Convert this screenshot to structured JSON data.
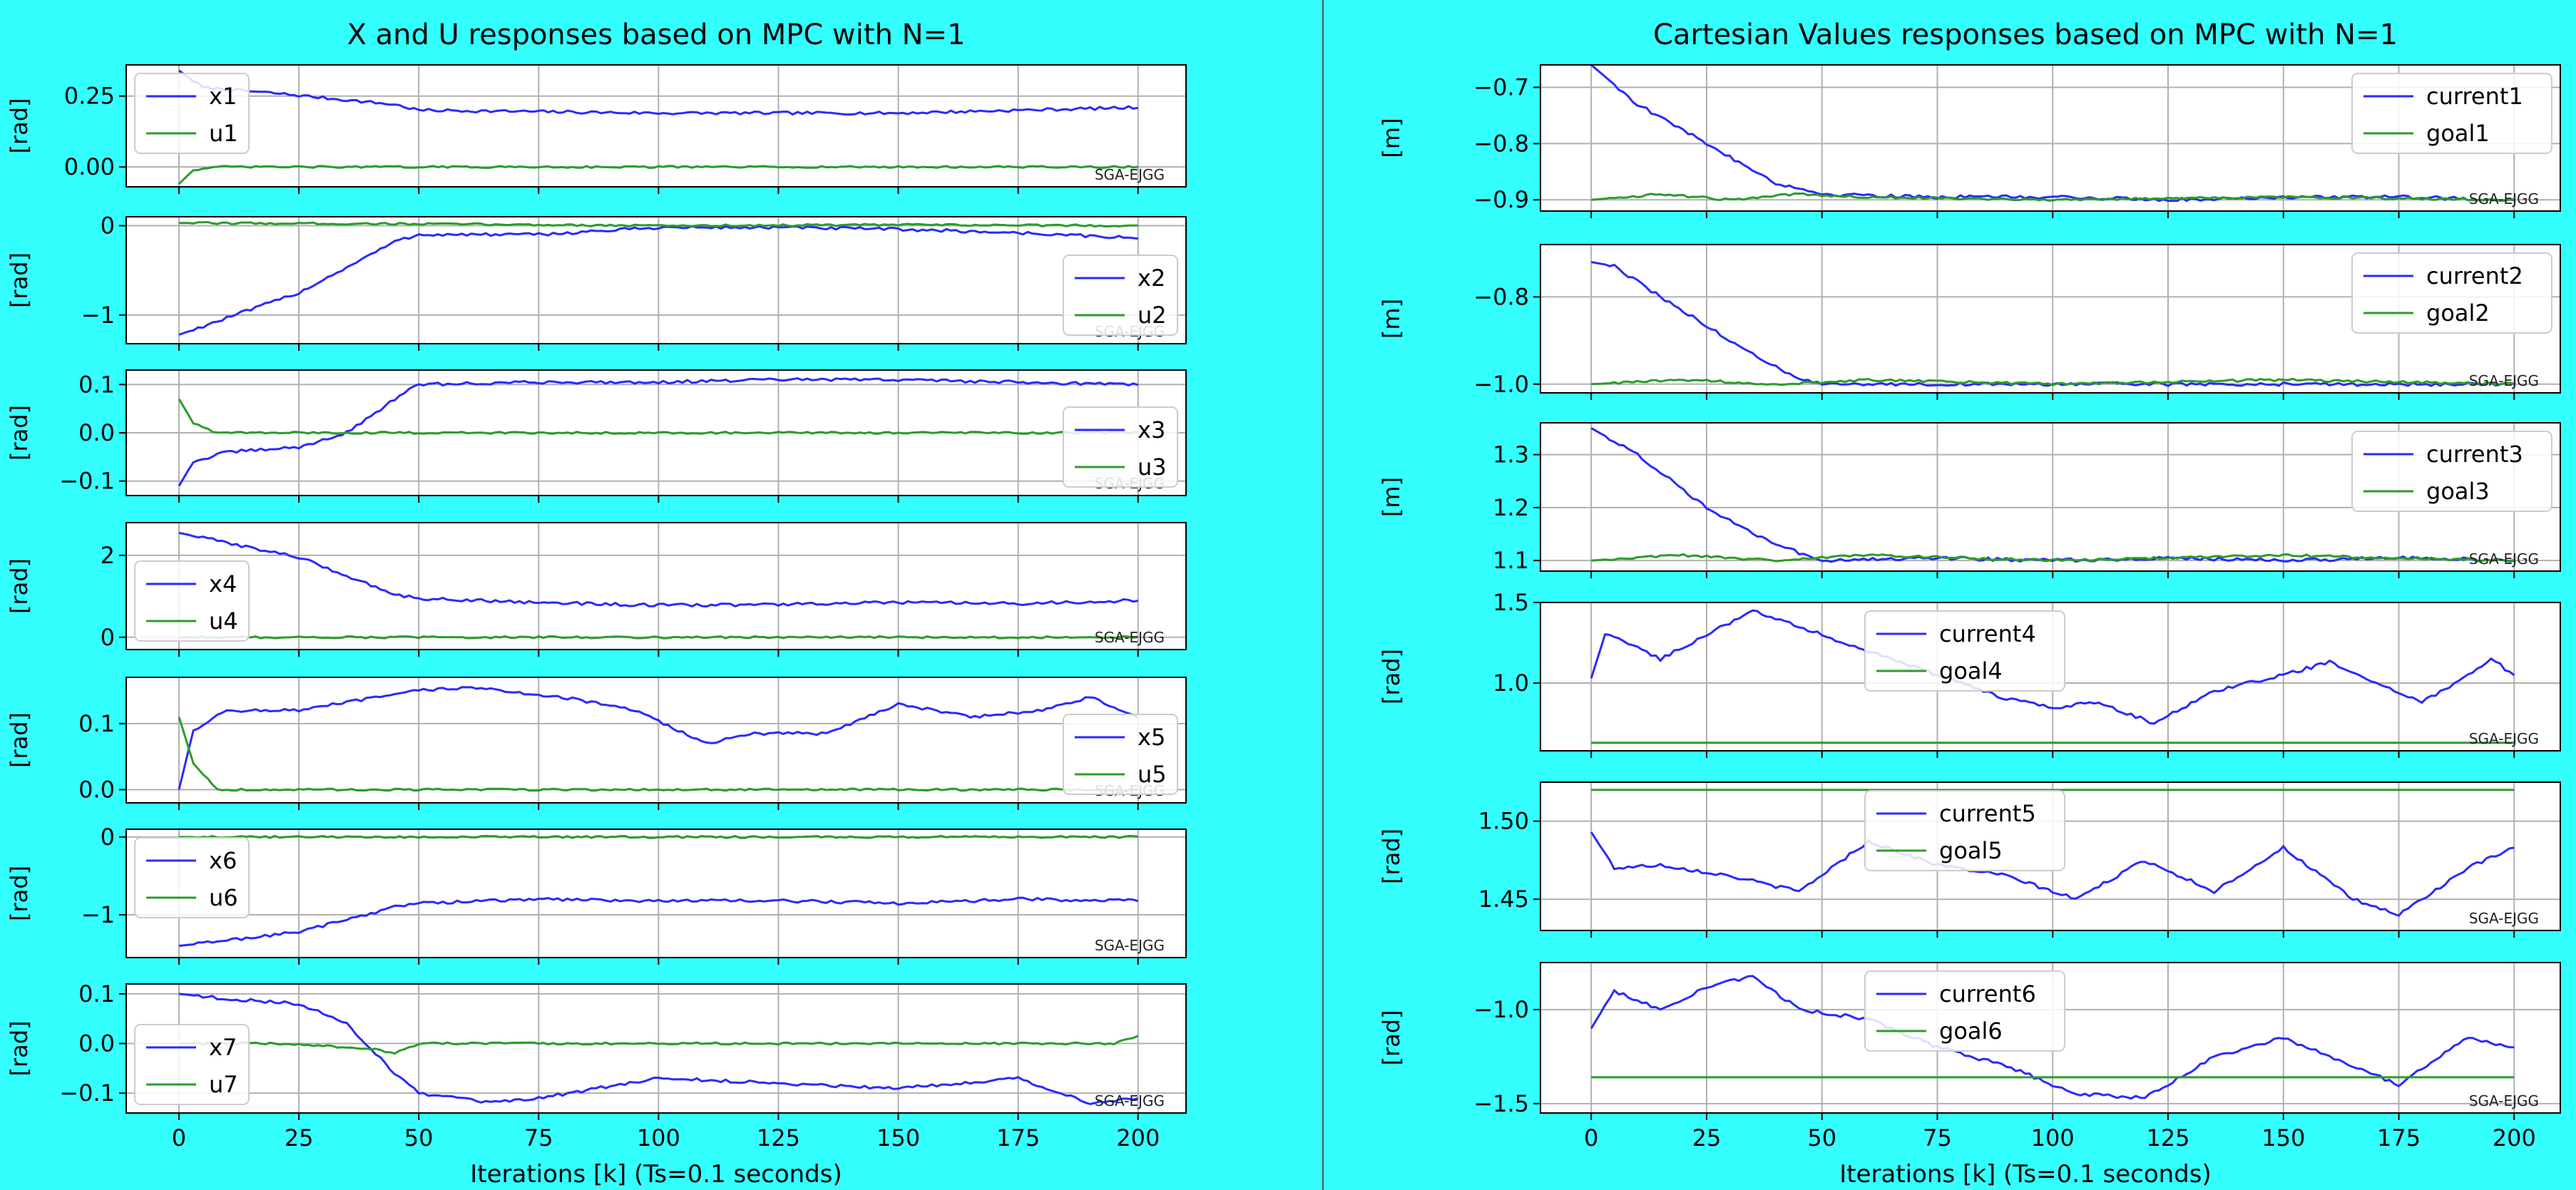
{
  "figure": {
    "background": "#33ffff",
    "panel_background": "#ffffff",
    "grid_color": "#b0b0b0",
    "series_colors": {
      "state": "#2a2aff",
      "input": "#2a9d2a"
    },
    "watermark": "SGA-EJGG",
    "left_title": "X and U responses based on MPC with N=1",
    "right_title": "Cartesian Values responses based on MPC with N=1",
    "left_xlabel": "Iterations [k] (Ts=0.1 seconds)",
    "right_xlabel": "Iterations [k] (Ts=0.1 seconds)",
    "x_ticks": [
      "0",
      "25",
      "50",
      "75",
      "100",
      "125",
      "150",
      "175",
      "200"
    ]
  },
  "chart_data": [
    {
      "type": "line",
      "panel": "left-1",
      "ylabel": "[rad]",
      "xlim": [
        -11,
        210
      ],
      "ylim": [
        -0.07,
        0.36
      ],
      "yticks": [
        0.0,
        0.25
      ],
      "ytick_labels": [
        "0.00",
        "0.25"
      ],
      "legend": "top-left",
      "series": [
        {
          "name": "x1",
          "x": [
            0,
            5,
            20,
            45,
            50,
            100,
            150,
            200
          ],
          "values": [
            0.34,
            0.28,
            0.26,
            0.22,
            0.2,
            0.19,
            0.19,
            0.21
          ]
        },
        {
          "name": "u1",
          "x": [
            0,
            3,
            8,
            20,
            50,
            100,
            150,
            200
          ],
          "values": [
            -0.06,
            -0.01,
            0.0,
            0.0,
            0.0,
            0.0,
            0.0,
            0.0
          ]
        }
      ]
    },
    {
      "type": "line",
      "panel": "left-2",
      "ylabel": "[rad]",
      "xlim": [
        -11,
        210
      ],
      "ylim": [
        -1.32,
        0.1
      ],
      "yticks": [
        -1,
        0
      ],
      "ytick_labels": [
        "−1",
        "0"
      ],
      "legend": "bottom-right",
      "series": [
        {
          "name": "x2",
          "x": [
            0,
            25,
            45,
            50,
            75,
            100,
            125,
            150,
            175,
            200
          ],
          "values": [
            -1.22,
            -0.75,
            -0.18,
            -0.1,
            -0.1,
            -0.02,
            -0.02,
            -0.04,
            -0.08,
            -0.14
          ]
        },
        {
          "name": "u2",
          "x": [
            0,
            50,
            100,
            150,
            200
          ],
          "values": [
            0.03,
            0.02,
            0.0,
            0.01,
            0.0
          ]
        }
      ]
    },
    {
      "type": "line",
      "panel": "left-3",
      "ylabel": "[rad]",
      "xlim": [
        -11,
        210
      ],
      "ylim": [
        -0.13,
        0.13
      ],
      "yticks": [
        -0.1,
        0.0,
        0.1
      ],
      "ytick_labels": [
        "−0.1",
        "0.0",
        "0.1"
      ],
      "legend": "bottom-right",
      "series": [
        {
          "name": "x3",
          "x": [
            0,
            3,
            10,
            25,
            35,
            45,
            50,
            75,
            100,
            125,
            150,
            175,
            200
          ],
          "values": [
            -0.11,
            -0.06,
            -0.04,
            -0.03,
            0.0,
            0.07,
            0.1,
            0.105,
            0.105,
            0.11,
            0.11,
            0.105,
            0.1
          ]
        },
        {
          "name": "u3",
          "x": [
            0,
            3,
            8,
            25,
            50,
            100,
            150,
            200
          ],
          "values": [
            0.07,
            0.02,
            0.0,
            0.0,
            0.0,
            0.0,
            0.0,
            0.0
          ]
        }
      ]
    },
    {
      "type": "line",
      "panel": "left-4",
      "ylabel": "[rad]",
      "xlim": [
        -11,
        210
      ],
      "ylim": [
        -0.3,
        2.8
      ],
      "yticks": [
        0,
        2
      ],
      "ytick_labels": [
        "0",
        "2"
      ],
      "legend": "bottom-left",
      "series": [
        {
          "name": "x4",
          "x": [
            0,
            25,
            45,
            50,
            75,
            100,
            125,
            150,
            175,
            200
          ],
          "values": [
            2.55,
            1.95,
            1.05,
            0.95,
            0.85,
            0.78,
            0.8,
            0.85,
            0.82,
            0.9
          ]
        },
        {
          "name": "u4",
          "x": [
            0,
            50,
            100,
            150,
            200
          ],
          "values": [
            0.0,
            0.0,
            0.0,
            0.0,
            0.0
          ]
        }
      ]
    },
    {
      "type": "line",
      "panel": "left-5",
      "ylabel": "[rad]",
      "xlim": [
        -11,
        210
      ],
      "ylim": [
        -0.02,
        0.17
      ],
      "yticks": [
        0.0,
        0.1
      ],
      "ytick_labels": [
        "0.0",
        "0.1"
      ],
      "legend": "bottom-right",
      "series": [
        {
          "name": "x5",
          "x": [
            0,
            3,
            10,
            25,
            50,
            60,
            80,
            95,
            110,
            120,
            135,
            150,
            165,
            180,
            190,
            200
          ],
          "values": [
            0.0,
            0.09,
            0.12,
            0.12,
            0.15,
            0.155,
            0.14,
            0.12,
            0.07,
            0.085,
            0.085,
            0.13,
            0.11,
            0.12,
            0.14,
            0.11
          ]
        },
        {
          "name": "u5",
          "x": [
            0,
            3,
            8,
            20,
            50,
            100,
            150,
            200
          ],
          "values": [
            0.11,
            0.04,
            0.0,
            0.0,
            0.0,
            0.0,
            0.0,
            0.0
          ]
        }
      ]
    },
    {
      "type": "line",
      "panel": "left-6",
      "ylabel": "[rad]",
      "xlim": [
        -11,
        210
      ],
      "ylim": [
        -1.55,
        0.1
      ],
      "yticks": [
        -1,
        0
      ],
      "ytick_labels": [
        "−1",
        "0"
      ],
      "legend": "top-left",
      "series": [
        {
          "name": "x6",
          "x": [
            0,
            25,
            45,
            50,
            75,
            100,
            125,
            150,
            175,
            200
          ],
          "values": [
            -1.4,
            -1.22,
            -0.9,
            -0.85,
            -0.8,
            -0.82,
            -0.82,
            -0.85,
            -0.8,
            -0.82
          ]
        },
        {
          "name": "u6",
          "x": [
            0,
            50,
            100,
            150,
            200
          ],
          "values": [
            0.0,
            0.0,
            0.0,
            0.0,
            0.0
          ]
        }
      ]
    },
    {
      "type": "line",
      "panel": "left-7",
      "ylabel": "[rad]",
      "xlim": [
        -11,
        210
      ],
      "ylim": [
        -0.14,
        0.12
      ],
      "yticks": [
        -0.1,
        0.0,
        0.1
      ],
      "ytick_labels": [
        "−0.1",
        "0.0",
        "0.1"
      ],
      "legend": "bottom-left",
      "series": [
        {
          "name": "x7",
          "x": [
            0,
            10,
            25,
            35,
            45,
            50,
            65,
            75,
            100,
            125,
            150,
            175,
            190,
            200
          ],
          "values": [
            0.1,
            0.09,
            0.08,
            0.04,
            -0.06,
            -0.1,
            -0.12,
            -0.11,
            -0.07,
            -0.08,
            -0.09,
            -0.07,
            -0.12,
            -0.11
          ]
        },
        {
          "name": "u7",
          "x": [
            0,
            20,
            40,
            45,
            50,
            100,
            150,
            195,
            200
          ],
          "values": [
            0.0,
            0.0,
            -0.01,
            -0.02,
            0.0,
            0.0,
            0.0,
            0.0,
            0.015
          ]
        }
      ]
    },
    {
      "type": "line",
      "panel": "right-1",
      "ylabel": "[m]",
      "xlim": [
        -11,
        210
      ],
      "ylim": [
        -0.92,
        -0.66
      ],
      "yticks": [
        -0.9,
        -0.8,
        -0.7
      ],
      "ytick_labels": [
        "−0.9",
        "−0.8",
        "−0.7"
      ],
      "legend": "top-right",
      "series": [
        {
          "name": "current1",
          "x": [
            0,
            10,
            25,
            40,
            50,
            75,
            100,
            125,
            150,
            175,
            200
          ],
          "values": [
            -0.66,
            -0.73,
            -0.8,
            -0.87,
            -0.89,
            -0.895,
            -0.895,
            -0.9,
            -0.895,
            -0.895,
            -0.9
          ]
        },
        {
          "name": "goal1",
          "x": [
            0,
            15,
            30,
            45,
            60,
            100,
            150,
            200
          ],
          "values": [
            -0.9,
            -0.89,
            -0.9,
            -0.89,
            -0.895,
            -0.9,
            -0.895,
            -0.9
          ]
        }
      ]
    },
    {
      "type": "line",
      "panel": "right-2",
      "ylabel": "[m]",
      "xlim": [
        -11,
        210
      ],
      "ylim": [
        -1.02,
        -0.68
      ],
      "yticks": [
        -1.0,
        -0.8
      ],
      "ytick_labels": [
        "−1.0",
        "−0.8"
      ],
      "legend": "top-right",
      "series": [
        {
          "name": "current2",
          "x": [
            0,
            5,
            15,
            30,
            45,
            50,
            75,
            100,
            125,
            150,
            175,
            200
          ],
          "values": [
            -0.72,
            -0.73,
            -0.8,
            -0.9,
            -0.99,
            -1.0,
            -1.0,
            -1.0,
            -1.0,
            -1.0,
            -1.0,
            -1.0
          ]
        },
        {
          "name": "goal2",
          "x": [
            0,
            20,
            40,
            60,
            100,
            150,
            200
          ],
          "values": [
            -1.0,
            -0.99,
            -1.0,
            -0.99,
            -1.0,
            -0.99,
            -1.0
          ]
        }
      ]
    },
    {
      "type": "line",
      "panel": "right-3",
      "ylabel": "[m]",
      "xlim": [
        -11,
        210
      ],
      "ylim": [
        1.08,
        1.36
      ],
      "yticks": [
        1.1,
        1.2,
        1.3
      ],
      "ytick_labels": [
        "1.1",
        "1.2",
        "1.3"
      ],
      "legend": "top-right",
      "series": [
        {
          "name": "current3",
          "x": [
            0,
            10,
            25,
            40,
            50,
            75,
            100,
            125,
            150,
            175,
            200
          ],
          "values": [
            1.35,
            1.3,
            1.2,
            1.13,
            1.1,
            1.105,
            1.1,
            1.105,
            1.1,
            1.105,
            1.1
          ]
        },
        {
          "name": "goal3",
          "x": [
            0,
            20,
            40,
            60,
            100,
            150,
            200
          ],
          "values": [
            1.1,
            1.11,
            1.1,
            1.11,
            1.1,
            1.11,
            1.1
          ]
        }
      ]
    },
    {
      "type": "line",
      "panel": "right-4",
      "ylabel": "[rad]",
      "xlim": [
        -11,
        210
      ],
      "ylim": [
        0.58,
        1.5
      ],
      "yticks": [
        1.0,
        1.5
      ],
      "ytick_labels": [
        "1.0",
        "1.5"
      ],
      "legend": "top-center",
      "series": [
        {
          "name": "current4",
          "x": [
            0,
            3,
            8,
            15,
            25,
            35,
            45,
            60,
            75,
            90,
            100,
            110,
            122,
            135,
            150,
            160,
            170,
            180,
            190,
            195,
            200
          ],
          "values": [
            1.03,
            1.3,
            1.25,
            1.15,
            1.3,
            1.45,
            1.35,
            1.2,
            1.05,
            0.9,
            0.85,
            0.88,
            0.75,
            0.95,
            1.05,
            1.13,
            1.0,
            0.88,
            1.05,
            1.15,
            1.05
          ]
        },
        {
          "name": "goal4",
          "x": [
            0,
            200
          ],
          "values": [
            0.63,
            0.63
          ]
        }
      ]
    },
    {
      "type": "line",
      "panel": "right-5",
      "ylabel": "[rad]",
      "xlim": [
        -11,
        210
      ],
      "ylim": [
        1.43,
        1.525
      ],
      "yticks": [
        1.45,
        1.5
      ],
      "ytick_labels": [
        "1.45",
        "1.50"
      ],
      "legend": "top-center",
      "series": [
        {
          "name": "current5",
          "x": [
            0,
            5,
            15,
            30,
            45,
            60,
            75,
            90,
            105,
            120,
            135,
            150,
            165,
            175,
            190,
            200
          ],
          "values": [
            1.493,
            1.47,
            1.472,
            1.465,
            1.455,
            1.487,
            1.472,
            1.465,
            1.45,
            1.475,
            1.455,
            1.483,
            1.45,
            1.44,
            1.47,
            1.483
          ]
        },
        {
          "name": "goal5",
          "x": [
            0,
            200
          ],
          "values": [
            1.52,
            1.52
          ]
        }
      ]
    },
    {
      "type": "line",
      "panel": "right-6",
      "ylabel": "[rad]",
      "xlim": [
        -11,
        210
      ],
      "ylim": [
        -1.55,
        -0.75
      ],
      "yticks": [
        -1.5,
        -1.0
      ],
      "ytick_labels": [
        "−1.5",
        "−1.0"
      ],
      "legend": "top-center",
      "series": [
        {
          "name": "current6",
          "x": [
            0,
            5,
            15,
            25,
            35,
            45,
            60,
            75,
            90,
            105,
            120,
            135,
            150,
            165,
            175,
            190,
            200
          ],
          "values": [
            -1.1,
            -0.9,
            -1.0,
            -0.88,
            -0.82,
            -1.0,
            -1.05,
            -1.2,
            -1.3,
            -1.45,
            -1.47,
            -1.25,
            -1.15,
            -1.3,
            -1.4,
            -1.15,
            -1.2
          ]
        },
        {
          "name": "goal6",
          "x": [
            0,
            200
          ],
          "values": [
            -1.36,
            -1.36
          ]
        }
      ]
    }
  ]
}
